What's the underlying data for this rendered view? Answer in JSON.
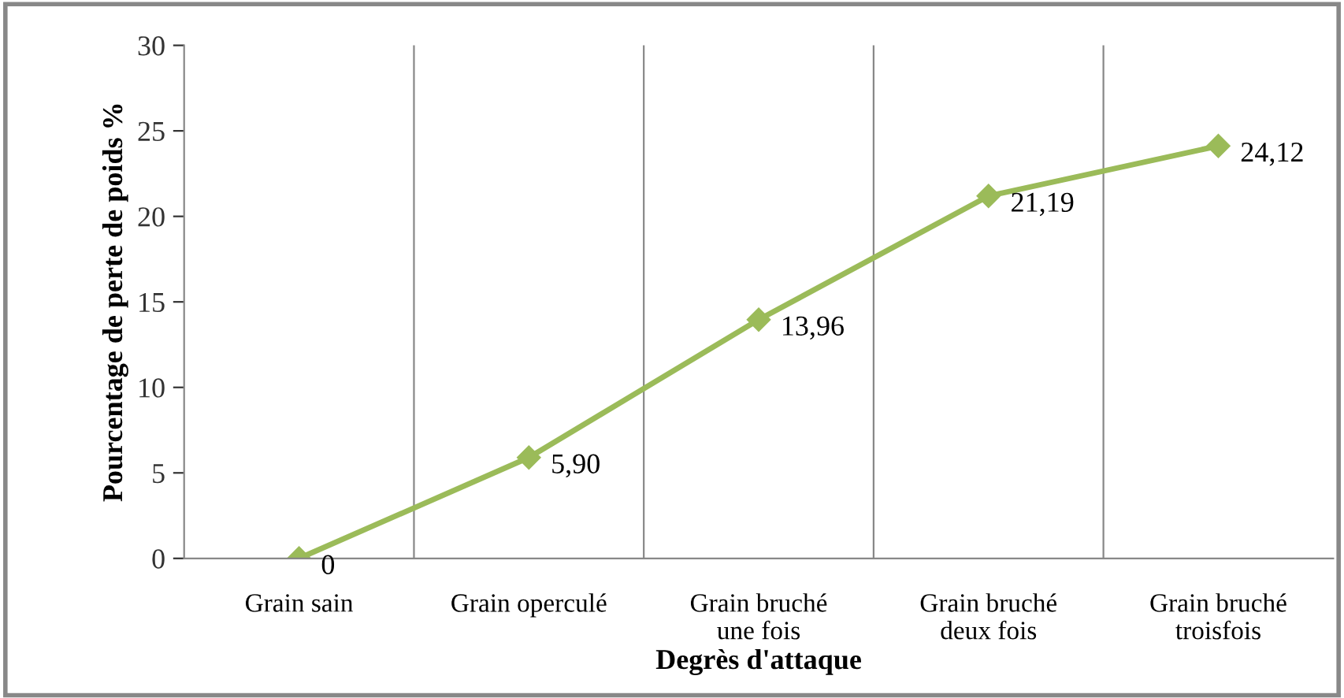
{
  "chart_data": {
    "type": "line",
    "xlabel": "Degrès d'attaque",
    "ylabel": "Pourcentage de perte de poids %",
    "categories": [
      "Grain sain",
      "Grain operculé",
      "Grain bruché\nune fois",
      "Grain bruché\ndeux fois",
      "Grain bruché\ntroisfois"
    ],
    "series": [
      {
        "color": "#9bbb59",
        "values": [
          0,
          5.9,
          13.96,
          21.19,
          24.12
        ],
        "value_labels": [
          "0",
          "5,90",
          "13,96",
          "21,19",
          "24,12"
        ]
      }
    ],
    "ylim": [
      0,
      30
    ],
    "yticks": [
      0,
      5,
      10,
      15,
      20,
      25,
      30
    ],
    "grid": "x",
    "marker": "diamond",
    "line_style": "solid",
    "legend": false
  }
}
